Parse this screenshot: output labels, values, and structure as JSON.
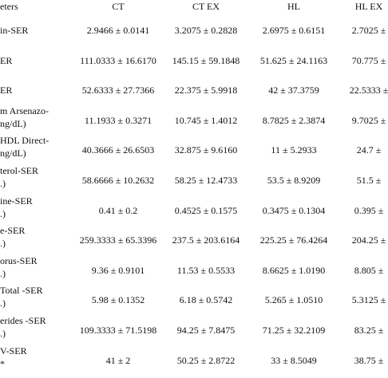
{
  "table": {
    "header": [
      "eters",
      "CT",
      "CT EX",
      "HL",
      "HL EX"
    ],
    "rows": [
      {
        "label": [
          "in-SER"
        ],
        "cells": [
          "2.9466 ± 0.0141",
          "3.2075 ± 0.2828",
          "2.6975 ± 0.6151",
          "2.7025 ±"
        ]
      },
      {
        "label": [
          "ER"
        ],
        "cells": [
          "111.0333 ± 16.6170",
          "145.15 ± 59.1848",
          "51.625 ± 24.1163",
          "70.775 ±"
        ]
      },
      {
        "label": [
          "ER"
        ],
        "cells": [
          "52.6333 ± 27.7366",
          "22.375 ± 5.9918",
          "42 ± 37.3759",
          "22.5333 ±"
        ]
      },
      {
        "label": [
          "m Arsenazo-",
          "ng/dL)"
        ],
        "cells": [
          "11.1933 ± 0.3271",
          "10.745 ± 1.4012",
          "8.7825 ± 2.3874",
          "9.7025 ±"
        ]
      },
      {
        "label": [
          "HDL Direct-",
          "ng/dL)"
        ],
        "cells": [
          "40.3666 ± 26.6503",
          "32.875 ± 9.6160",
          "11 ± 5.2933",
          "24.7 ±"
        ]
      },
      {
        "label": [
          "terol-SER",
          ".)"
        ],
        "cells": [
          "58.6666 ± 10.2632",
          "58.25 ± 12.4733",
          "53.5 ± 8.9209",
          "51.5 ±"
        ]
      },
      {
        "label": [
          "ine-SER",
          ".)"
        ],
        "cells": [
          "0.41 ± 0.2",
          "0.4525 ± 0.1575",
          "0.3475 ± 0.1304",
          "0.395 ±"
        ]
      },
      {
        "label": [
          "e-SER",
          ".)"
        ],
        "cells": [
          "259.3333 ± 65.3396",
          "237.5 ± 203.6164",
          "225.25 ± 76.4264",
          "204.25 ±"
        ]
      },
      {
        "label": [
          "orus-SER",
          ".)"
        ],
        "cells": [
          "9.36 ± 0.9101",
          "11.53 ± 0.5533",
          "8.6625 ± 1.0190",
          "8.805 ±"
        ]
      },
      {
        "label": [
          "Total -SER",
          ".)"
        ],
        "cells": [
          "5.98 ± 0.1352",
          "6.18 ± 0.5742",
          "5.265 ± 1.0510",
          "5.3125 ±"
        ]
      },
      {
        "label": [
          "erides -SER",
          ".)"
        ],
        "cells": [
          "109.3333 ± 71.5198",
          "94.25 ± 7.8475",
          "71.25 ± 32.2109",
          "83.25 ±"
        ]
      },
      {
        "label": [
          "V-SER",
          "*"
        ],
        "cells": [
          "41 ± 2",
          "50.25 ± 2.8722",
          "33 ± 8.5049",
          "38.75 ±"
        ]
      }
    ]
  }
}
